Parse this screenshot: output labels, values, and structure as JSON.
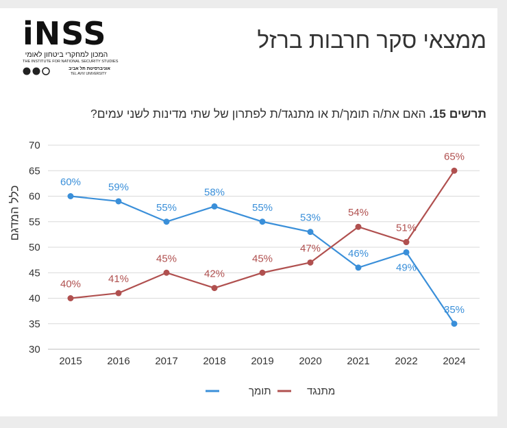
{
  "header": {
    "title": "ממצאי סקר חרבות ברזל",
    "logo": {
      "brand": "iNSS",
      "name_hebrew": "המכון למחקרי ביטחון לאומי",
      "name_english": "THE INSTITUTE FOR NATIONAL SECURITY STUDIES",
      "university_hebrew": "אוניברסיטת תל אביב",
      "university_english": "TEL AVIV UNIVERSITY"
    }
  },
  "chart_data": {
    "type": "line",
    "title_prefix": "תרשים 15.",
    "title": "האם את/ה תומך/ת או מתנגד/ת לפתרון של שתי מדינות לשני עמים?",
    "ylabel": "כלל המדגם",
    "xlabel": "",
    "categories": [
      "2015",
      "2016",
      "2017",
      "2018",
      "2019",
      "2020",
      "2021",
      "2022",
      "2024"
    ],
    "ylim": [
      30,
      70
    ],
    "yticks": [
      30,
      35,
      40,
      45,
      50,
      55,
      60,
      65,
      70
    ],
    "grid": true,
    "legend_position": "bottom-center",
    "series": [
      {
        "name": "תומך",
        "color": "#3a8fd9",
        "values": [
          60,
          59,
          55,
          58,
          55,
          53,
          46,
          49,
          35
        ],
        "labels": [
          "60%",
          "59%",
          "55%",
          "58%",
          "55%",
          "53%",
          "46%",
          "49%",
          "35%"
        ]
      },
      {
        "name": "מתנגד",
        "color": "#b0504f",
        "values": [
          40,
          41,
          45,
          42,
          45,
          47,
          54,
          51,
          65
        ],
        "labels": [
          "40%",
          "41%",
          "45%",
          "42%",
          "45%",
          "47%",
          "54%",
          "51%",
          "65%"
        ]
      }
    ]
  }
}
